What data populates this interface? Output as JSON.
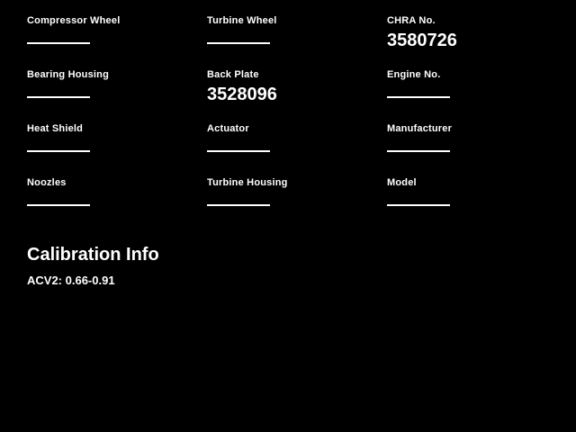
{
  "screen": {
    "background_color": "#000000",
    "text_color": "#ffffff"
  },
  "fields": [
    {
      "label": "Compressor Wheel",
      "value": ""
    },
    {
      "label": "Turbine Wheel",
      "value": ""
    },
    {
      "label": "CHRA No.",
      "value": "3580726"
    },
    {
      "label": "Bearing Housing",
      "value": ""
    },
    {
      "label": "Back Plate",
      "value": "3528096"
    },
    {
      "label": "Engine No.",
      "value": ""
    },
    {
      "label": "Heat Shield",
      "value": ""
    },
    {
      "label": "Actuator",
      "value": ""
    },
    {
      "label": "Manufacturer",
      "value": ""
    },
    {
      "label": "Noozles",
      "value": ""
    },
    {
      "label": "Turbine Housing",
      "value": ""
    },
    {
      "label": "Model",
      "value": ""
    }
  ],
  "calibration": {
    "title": "Calibration Info",
    "acv2": "ACV2: 0.66-0.91"
  }
}
